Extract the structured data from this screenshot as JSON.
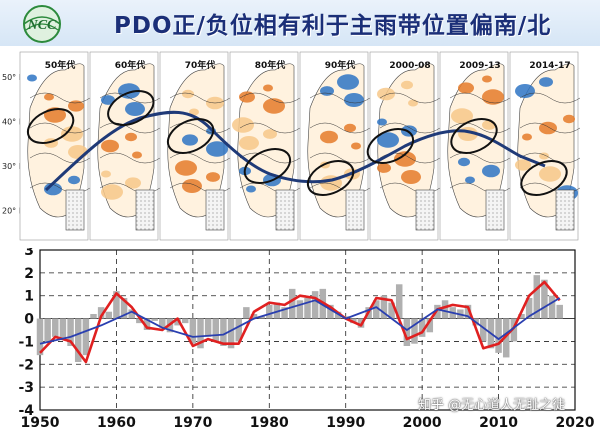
{
  "header": {
    "title": "PDO正/负位相有利于主雨带位置偏南/北",
    "logo_text": "NCC"
  },
  "maps": {
    "lat_labels": [
      "50° N",
      "40° N",
      "30° N",
      "20° N"
    ],
    "lat_values": [
      50,
      40,
      30,
      20
    ],
    "panels": [
      {
        "label": "50年代"
      },
      {
        "label": "60年代"
      },
      {
        "label": "70年代"
      },
      {
        "label": "80年代"
      },
      {
        "label": "90年代"
      },
      {
        "label": "2000-08"
      },
      {
        "label": "2009-13"
      },
      {
        "label": "2014-17"
      }
    ],
    "colors": {
      "positive": "#2e74c4",
      "negative": "#e57b2a",
      "line": "#1f3a78"
    }
  },
  "watermark": "知乎 @无心道人无耻之徒",
  "chart_data": {
    "type": "line",
    "title": "",
    "xlabel": "",
    "ylabel": "",
    "xlim": [
      1950,
      2020
    ],
    "ylim": [
      -4,
      3
    ],
    "xticks": [
      1950,
      1960,
      1970,
      1980,
      1990,
      2000,
      2010,
      2020
    ],
    "yticks": [
      -4,
      -3,
      -2,
      -1,
      0,
      1,
      2,
      3
    ],
    "grid": true,
    "series": [
      {
        "kind": "line",
        "color": "#e02020",
        "x": [
          1950,
          1952,
          1954,
          1956,
          1958,
          1960,
          1962,
          1964,
          1966,
          1968,
          1970,
          1972,
          1974,
          1976,
          1978,
          1980,
          1982,
          1984,
          1986,
          1988,
          1990,
          1992,
          1994,
          1996,
          1998,
          2000,
          2002,
          2004,
          2006,
          2008,
          2010,
          2012,
          2014,
          2016,
          2018
        ],
        "values": [
          -1.5,
          -0.8,
          -1.0,
          -1.9,
          0.1,
          1.1,
          0.5,
          -0.4,
          -0.5,
          0.0,
          -1.2,
          -0.9,
          -1.1,
          -1.1,
          0.3,
          0.7,
          0.6,
          1.0,
          0.9,
          0.5,
          0.0,
          -0.3,
          0.9,
          0.8,
          -0.9,
          -0.6,
          0.4,
          0.6,
          0.5,
          -1.3,
          -1.1,
          -0.4,
          1.0,
          1.6,
          0.8
        ]
      },
      {
        "kind": "line",
        "color": "#2a3fb0",
        "x": [
          1950,
          1954,
          1958,
          1962,
          1966,
          1970,
          1974,
          1978,
          1982,
          1986,
          1990,
          1994,
          1998,
          2002,
          2006,
          2010,
          2014,
          2018
        ],
        "values": [
          -1.1,
          -0.8,
          -0.3,
          0.3,
          -0.4,
          -0.8,
          -0.7,
          0.0,
          0.4,
          0.8,
          0.0,
          0.5,
          -0.5,
          0.4,
          0.1,
          -0.9,
          0.1,
          0.9
        ]
      },
      {
        "kind": "bar",
        "color": "#b0b0b0",
        "x": [
          1950,
          1951,
          1952,
          1953,
          1954,
          1955,
          1956,
          1957,
          1958,
          1959,
          1960,
          1961,
          1962,
          1963,
          1964,
          1965,
          1966,
          1967,
          1968,
          1969,
          1970,
          1971,
          1972,
          1973,
          1974,
          1975,
          1976,
          1977,
          1978,
          1979,
          1980,
          1981,
          1982,
          1983,
          1984,
          1985,
          1986,
          1987,
          1988,
          1989,
          1990,
          1991,
          1992,
          1993,
          1994,
          1995,
          1996,
          1997,
          1998,
          1999,
          2000,
          2001,
          2002,
          2003,
          2004,
          2005,
          2006,
          2007,
          2008,
          2009,
          2010,
          2011,
          2012,
          2013,
          2014,
          2015,
          2016,
          2017,
          2018
        ],
        "values": [
          -1.6,
          -1.0,
          -0.8,
          -0.9,
          -1.2,
          -1.9,
          -1.6,
          0.2,
          0.5,
          0.3,
          1.2,
          0.9,
          0.4,
          -0.2,
          -0.5,
          -0.1,
          -0.4,
          -0.6,
          -0.3,
          -0.2,
          -1.1,
          -1.3,
          -0.8,
          -1.0,
          -1.2,
          -1.3,
          -1.0,
          0.5,
          0.2,
          0.1,
          0.6,
          0.7,
          0.5,
          1.3,
          0.8,
          0.9,
          1.2,
          1.3,
          0.6,
          0.3,
          0.1,
          -0.2,
          -0.4,
          0.5,
          0.8,
          1.0,
          0.7,
          1.5,
          -1.2,
          -1.1,
          -0.8,
          -0.6,
          0.6,
          0.8,
          0.5,
          0.4,
          0.6,
          -0.3,
          -1.0,
          -1.3,
          -1.5,
          -1.7,
          -1.0,
          0.2,
          0.9,
          1.9,
          1.7,
          1.0,
          0.6
        ]
      }
    ]
  }
}
